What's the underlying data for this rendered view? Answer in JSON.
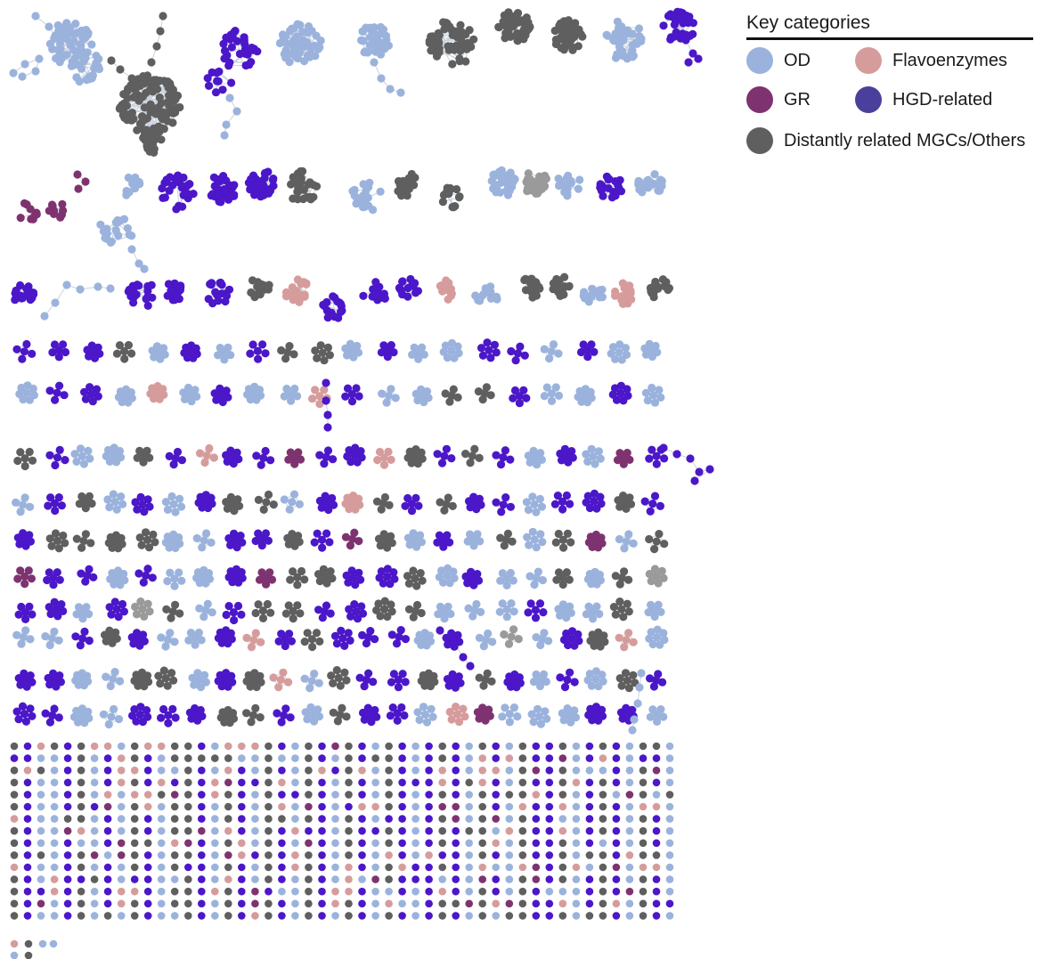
{
  "legend": {
    "title": "Key categories",
    "items": [
      {
        "label": "OD",
        "color": "#9bb3dc"
      },
      {
        "label": "Flavoenzymes",
        "color": "#d69c9c"
      },
      {
        "label": "GR",
        "color": "#7e3370"
      },
      {
        "label": "HGD-related",
        "color": "#4a3f9a"
      },
      {
        "label": "Distantly related MGCs/Others",
        "color": "#5f5f5f"
      }
    ]
  },
  "node_colors": {
    "OD": "#9bb3dc",
    "Flavoenzymes": "#d69c9c",
    "GR": "#7e3370",
    "HGD-related": "#4b17c9",
    "Distantly related MGCs/Others": "#5f5f5f",
    "Grey": "#9a9a9a"
  },
  "edge_color": "#c9d2dd"
}
